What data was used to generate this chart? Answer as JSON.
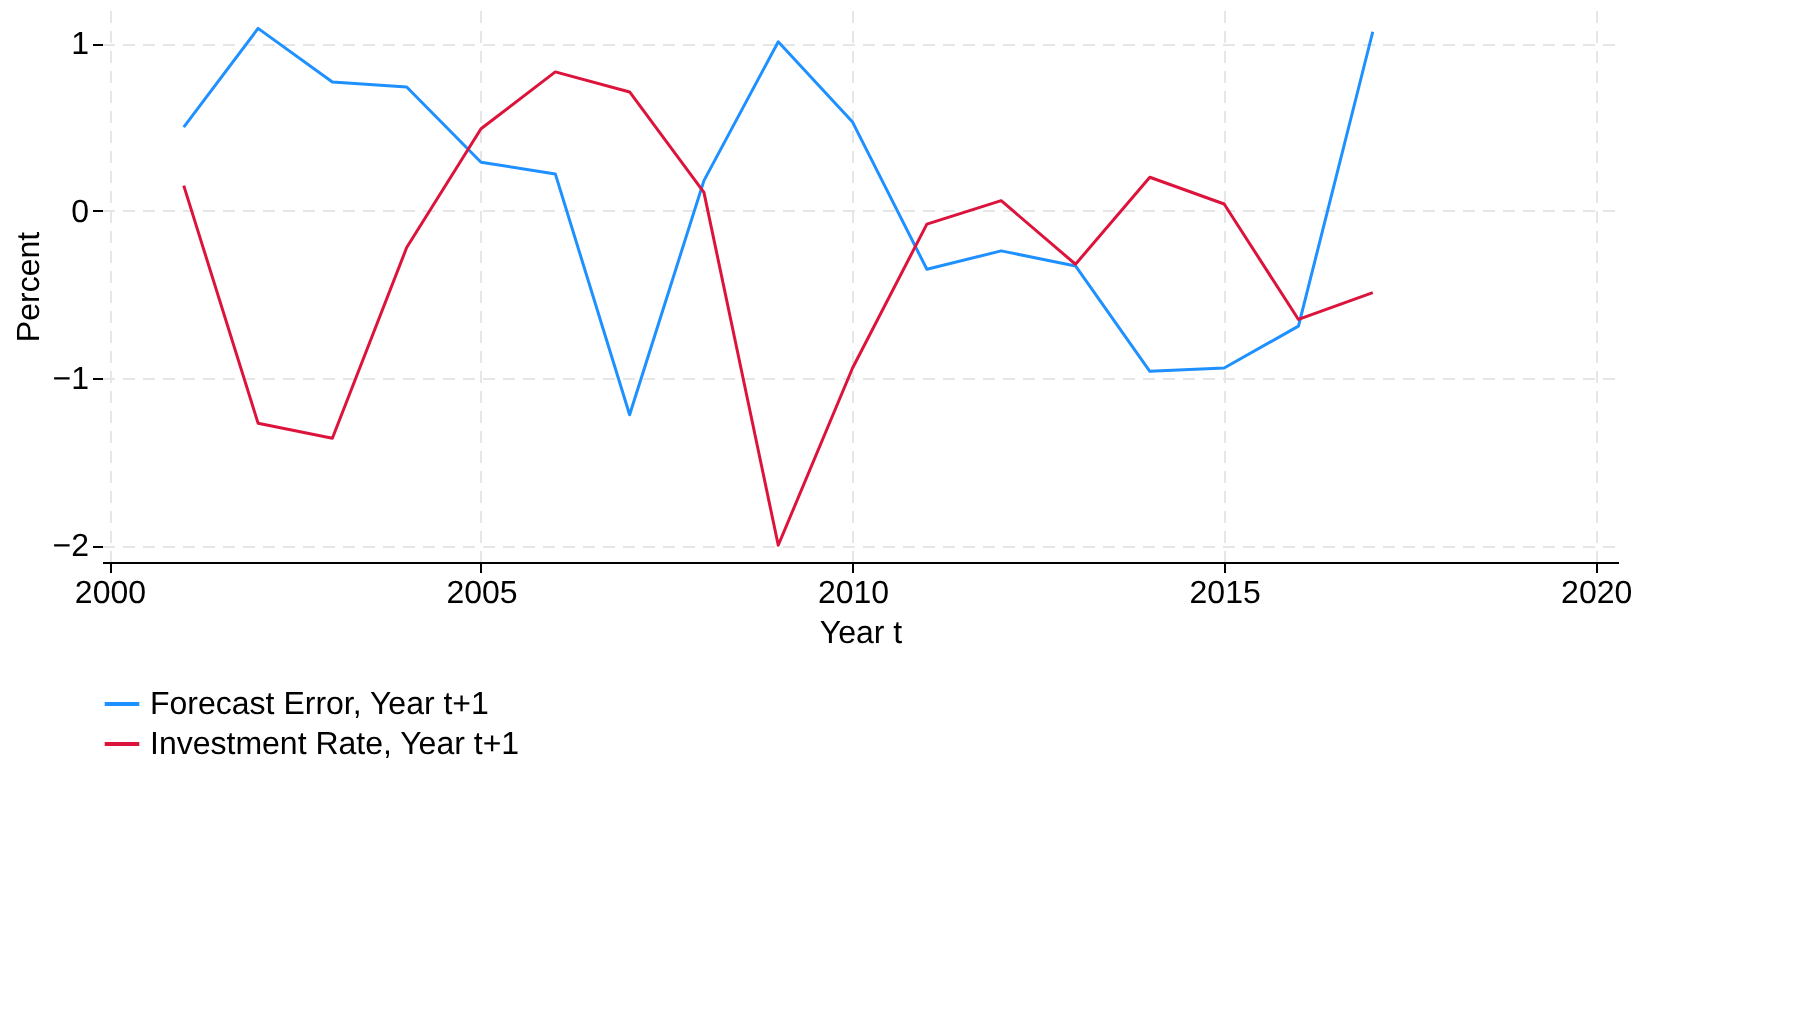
{
  "chart_data": {
    "type": "line",
    "xlabel": "Year t",
    "ylabel": "Percent",
    "x": [
      2001,
      2002,
      2003,
      2004,
      2005,
      2006,
      2007,
      2008,
      2009,
      2010,
      2011,
      2012,
      2013,
      2014,
      2015,
      2016,
      2017
    ],
    "series": [
      {
        "name": "Forecast Error, Year t+1",
        "color": "#1e90ff",
        "values": [
          0.5,
          1.09,
          0.77,
          0.74,
          0.29,
          0.22,
          -1.22,
          0.18,
          1.01,
          0.53,
          -0.35,
          -0.24,
          -0.33,
          -0.96,
          -0.94,
          -0.69,
          1.07
        ]
      },
      {
        "name": "Investment Rate, Year t+1",
        "color": "#dc143c",
        "values": [
          0.15,
          -1.27,
          -1.36,
          -0.22,
          0.49,
          0.83,
          0.71,
          0.11,
          -2.0,
          -0.94,
          -0.08,
          0.06,
          -0.32,
          0.2,
          0.04,
          -0.65,
          -0.49
        ]
      }
    ],
    "xlim": [
      1999.9,
      2020.3
    ],
    "xticks": [
      2000,
      2005,
      2010,
      2015,
      2020
    ],
    "ylim": [
      -2.1,
      1.2
    ],
    "yticks": [
      -2,
      -1,
      0,
      1
    ],
    "grid": true,
    "legend": "bottom",
    "marker": "none",
    "line_style": "solid"
  }
}
